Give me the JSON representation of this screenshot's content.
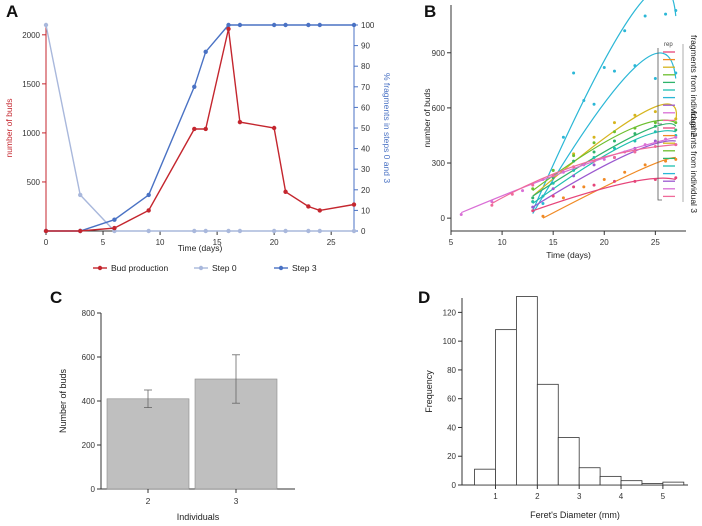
{
  "colors": {
    "bud": "#c4262e",
    "step0": "#a9b8dc",
    "step3": "#4a72c4",
    "axis": "#333333",
    "bar_fill": "#bfbfbf",
    "hist_fill": "#ffffff",
    "curve_palette": [
      "#e6457a",
      "#f08a24",
      "#d6b51e",
      "#6cbf2e",
      "#2fb36b",
      "#1fbfb0",
      "#2bb7d6",
      "#9b59d0",
      "#d96fd6",
      "#f06a9a"
    ]
  },
  "chart_data": [
    {
      "id": "A",
      "panel_label": "A",
      "type": "line",
      "xlabel": "Time (days)",
      "ylabel_left": "number of buds",
      "ylabel_right": "% fragments in steps 0 and 3",
      "xlim": [
        0,
        27
      ],
      "ylim_left": [
        0,
        2100
      ],
      "ylim_right": [
        0,
        100
      ],
      "x_ticks": [
        0,
        5,
        10,
        15,
        20,
        25
      ],
      "y_ticks_left": [
        500,
        1000,
        1500,
        2000
      ],
      "y_ticks_right": [
        0,
        10,
        20,
        30,
        40,
        50,
        60,
        70,
        80,
        90,
        100
      ],
      "series": [
        {
          "name": "Bud production",
          "axis": "left",
          "x": [
            0,
            3,
            6,
            9,
            13,
            14,
            16,
            17,
            20,
            21,
            23,
            24,
            27
          ],
          "y": [
            0,
            0,
            30,
            210,
            1040,
            1040,
            2060,
            1110,
            1050,
            400,
            250,
            210,
            270
          ]
        },
        {
          "name": "Step 0",
          "axis": "right",
          "x": [
            0,
            3,
            6,
            9,
            13,
            14,
            16,
            17,
            20,
            21,
            23,
            24,
            27
          ],
          "y": [
            100,
            17.5,
            0,
            0,
            0,
            0,
            0,
            0,
            0,
            0,
            0,
            0,
            0
          ]
        },
        {
          "name": "Step 3",
          "axis": "right",
          "x": [
            0,
            3,
            6,
            9,
            13,
            14,
            16,
            17,
            20,
            21,
            23,
            24,
            27
          ],
          "y": [
            0,
            0,
            5.5,
            17.5,
            70,
            87,
            100,
            100,
            100,
            100,
            100,
            100,
            100
          ]
        }
      ],
      "legend": [
        "Bud production",
        "Step 0",
        "Step 3"
      ]
    },
    {
      "id": "B",
      "panel_label": "B",
      "type": "scatter",
      "xlabel": "Time (days)",
      "ylabel": "number of buds",
      "xlim": [
        5,
        28
      ],
      "ylim": [
        -70,
        1160
      ],
      "x_ticks": [
        5,
        10,
        15,
        20,
        25
      ],
      "y_ticks": [
        0,
        300,
        600,
        900
      ],
      "legend_title": "rep",
      "group_labels": [
        "fragments from individual 2",
        "fragments from individual 3"
      ],
      "series": [
        {
          "curve": [
            13,
            40,
            23,
            1130,
            27,
            1100
          ],
          "points_x": [
            14,
            16,
            18,
            20,
            22,
            24,
            26,
            27
          ],
          "points_y": [
            120,
            440,
            640,
            820,
            1020,
            1100,
            1110,
            1130
          ]
        },
        {
          "curve": [
            13,
            25,
            23,
            820,
            27,
            760
          ],
          "points_x": [
            14,
            15,
            17,
            19,
            21,
            23,
            25,
            27
          ],
          "points_y": [
            80,
            260,
            790,
            620,
            800,
            830,
            760,
            790
          ]
        },
        {
          "curve": [
            13,
            120,
            24,
            580,
            27,
            530
          ],
          "points_x": [
            13,
            15,
            17,
            19,
            21,
            23,
            25,
            27
          ],
          "points_y": [
            90,
            230,
            350,
            440,
            520,
            560,
            580,
            540
          ]
        },
        {
          "curve": [
            13,
            150,
            22,
            470,
            27,
            520
          ],
          "points_x": [
            13,
            15,
            17,
            19,
            21,
            23,
            25,
            27
          ],
          "points_y": [
            160,
            260,
            340,
            410,
            470,
            490,
            520,
            520
          ]
        },
        {
          "curve": [
            13,
            120,
            23,
            450,
            27,
            500
          ],
          "points_x": [
            13,
            15,
            17,
            19,
            21,
            23,
            25,
            27
          ],
          "points_y": [
            110,
            220,
            310,
            360,
            420,
            460,
            500,
            480
          ]
        },
        {
          "curve": [
            13,
            80,
            22,
            400,
            27,
            470
          ],
          "points_x": [
            13,
            15,
            17,
            19,
            21,
            23,
            25,
            27
          ],
          "points_y": [
            90,
            190,
            260,
            330,
            380,
            420,
            470,
            450
          ]
        },
        {
          "curve": [
            13,
            60,
            22,
            340,
            27,
            420
          ],
          "points_x": [
            13,
            15,
            17,
            19,
            21,
            23,
            25,
            27
          ],
          "points_y": [
            60,
            160,
            230,
            290,
            330,
            380,
            420,
            400
          ]
        },
        {
          "curve": [
            14,
            0,
            23,
            250,
            27,
            330
          ],
          "points_x": [
            14,
            16,
            18,
            20,
            22,
            24,
            26,
            27
          ],
          "points_y": [
            10,
            110,
            170,
            210,
            250,
            290,
            310,
            320
          ]
        },
        {
          "curve": [
            13,
            40,
            22,
            190,
            27,
            210
          ],
          "points_x": [
            13,
            15,
            17,
            19,
            21,
            23,
            25,
            27
          ],
          "points_y": [
            40,
            120,
            170,
            180,
            200,
            200,
            210,
            220
          ]
        },
        {
          "curve": [
            6,
            30,
            18,
            290,
            27,
            440
          ],
          "points_x": [
            6,
            9,
            12,
            14,
            16,
            18,
            20,
            22,
            24,
            26,
            27
          ],
          "points_y": [
            20,
            90,
            150,
            210,
            250,
            290,
            320,
            360,
            400,
            430,
            440
          ]
        },
        {
          "curve": [
            9,
            80,
            18,
            300,
            27,
            400
          ],
          "points_x": [
            9,
            11,
            13,
            15,
            17,
            19,
            21,
            23,
            25,
            27
          ],
          "points_y": [
            70,
            130,
            180,
            230,
            280,
            310,
            330,
            360,
            390,
            400
          ]
        }
      ]
    },
    {
      "id": "C",
      "panel_label": "C",
      "type": "bar",
      "xlabel": "Individuals",
      "ylabel": "Number of buds",
      "categories": [
        "2",
        "3"
      ],
      "values": [
        410,
        500
      ],
      "errors": [
        40,
        110
      ],
      "ylim": [
        0,
        800
      ],
      "y_ticks": [
        0,
        200,
        400,
        600,
        800
      ]
    },
    {
      "id": "D",
      "panel_label": "D",
      "type": "bar",
      "xlabel": "Feret's Diameter (mm)",
      "ylabel": "Frequency",
      "bin_edges": [
        0.5,
        1.0,
        1.5,
        2.0,
        2.5,
        3.0,
        3.5,
        4.0,
        4.5,
        5.0,
        5.5
      ],
      "counts": [
        11,
        108,
        131,
        70,
        33,
        12,
        6,
        3,
        1,
        2
      ],
      "xlim": [
        0.2,
        5.6
      ],
      "ylim": [
        0,
        130
      ],
      "x_ticks": [
        1,
        2,
        3,
        4,
        5
      ],
      "y_ticks": [
        0,
        20,
        40,
        60,
        80,
        100,
        120
      ]
    }
  ]
}
